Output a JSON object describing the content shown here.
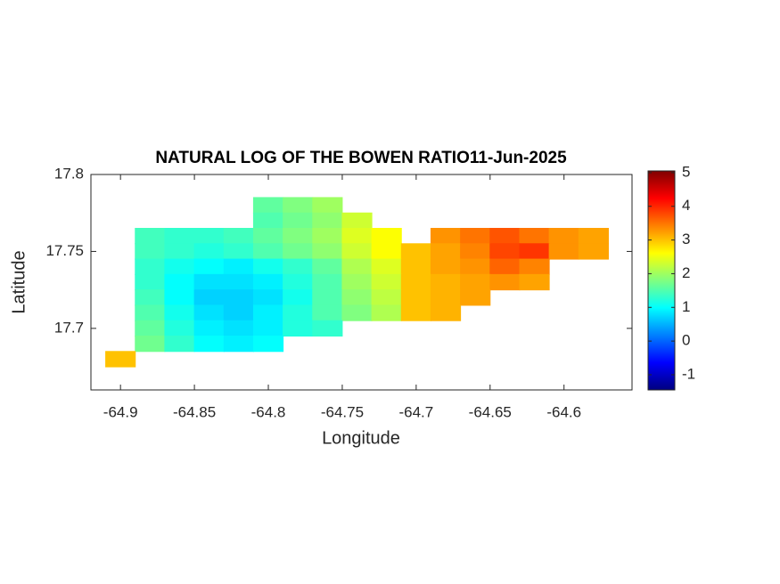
{
  "chart_data": {
    "type": "heatmap",
    "title": "NATURAL LOG OF THE BOWEN RATIO11-Jun-2025",
    "xlabel": "Longitude",
    "ylabel": "Latitude",
    "xlim": [
      -64.92,
      -64.554
    ],
    "ylim": [
      17.66,
      17.8
    ],
    "xticks": [
      -64.9,
      -64.85,
      -64.8,
      -64.75,
      -64.7,
      -64.65,
      -64.6
    ],
    "yticks": [
      17.7,
      17.75,
      17.8
    ],
    "x": [
      -64.9,
      -64.88,
      -64.86,
      -64.84,
      -64.82,
      -64.8,
      -64.78,
      -64.76,
      -64.74,
      -64.72,
      -64.7,
      -64.68,
      -64.66,
      -64.64,
      -64.62,
      -64.6,
      -64.58,
      -64.56
    ],
    "y": [
      17.78,
      17.77,
      17.76,
      17.75,
      17.74,
      17.73,
      17.72,
      17.71,
      17.7,
      17.69,
      17.68
    ],
    "z": [
      [
        null,
        null,
        null,
        null,
        null,
        1.6,
        1.8,
        2.0,
        null,
        null,
        null,
        null,
        null,
        null,
        null,
        null,
        null,
        null
      ],
      [
        null,
        null,
        null,
        null,
        null,
        1.5,
        1.7,
        1.9,
        2.3,
        null,
        null,
        null,
        null,
        null,
        null,
        null,
        null,
        null
      ],
      [
        null,
        1.4,
        1.3,
        1.3,
        1.4,
        1.6,
        1.8,
        2.0,
        2.4,
        2.6,
        null,
        3.3,
        3.5,
        3.7,
        3.5,
        3.3,
        3.2,
        null
      ],
      [
        null,
        1.4,
        1.3,
        1.2,
        1.3,
        1.5,
        1.7,
        1.9,
        2.3,
        2.6,
        3.0,
        3.2,
        3.4,
        3.8,
        3.9,
        3.3,
        3.2,
        null
      ],
      [
        null,
        1.3,
        1.1,
        1.0,
        0.9,
        1.1,
        1.3,
        1.6,
        2.1,
        2.4,
        3.0,
        3.2,
        3.3,
        3.6,
        3.4,
        null,
        null,
        null
      ],
      [
        null,
        1.3,
        1.0,
        0.8,
        0.8,
        0.9,
        1.2,
        1.5,
        2.0,
        2.3,
        3.0,
        3.1,
        3.2,
        3.3,
        3.2,
        null,
        null,
        null
      ],
      [
        null,
        1.4,
        1.0,
        0.7,
        0.7,
        0.8,
        1.1,
        1.5,
        1.9,
        2.2,
        3.0,
        3.1,
        3.2,
        null,
        null,
        null,
        null,
        null
      ],
      [
        null,
        1.5,
        1.1,
        0.8,
        0.7,
        0.9,
        1.2,
        1.5,
        1.8,
        2.1,
        3.0,
        3.1,
        null,
        null,
        null,
        null,
        null,
        null
      ],
      [
        null,
        1.6,
        1.2,
        0.9,
        0.8,
        0.9,
        1.2,
        1.3,
        null,
        null,
        null,
        null,
        null,
        null,
        null,
        null,
        null,
        null
      ],
      [
        null,
        1.7,
        1.3,
        1.0,
        0.9,
        1.0,
        null,
        null,
        null,
        null,
        null,
        null,
        null,
        null,
        null,
        null,
        null,
        null
      ],
      [
        3.0,
        null,
        null,
        null,
        null,
        null,
        null,
        null,
        null,
        null,
        null,
        null,
        null,
        null,
        null,
        null,
        null,
        null
      ]
    ],
    "colormap": "jet",
    "clim": [
      -1.45,
      5.05
    ],
    "cticks": [
      -1,
      0,
      1,
      2,
      3,
      4,
      5
    ]
  }
}
